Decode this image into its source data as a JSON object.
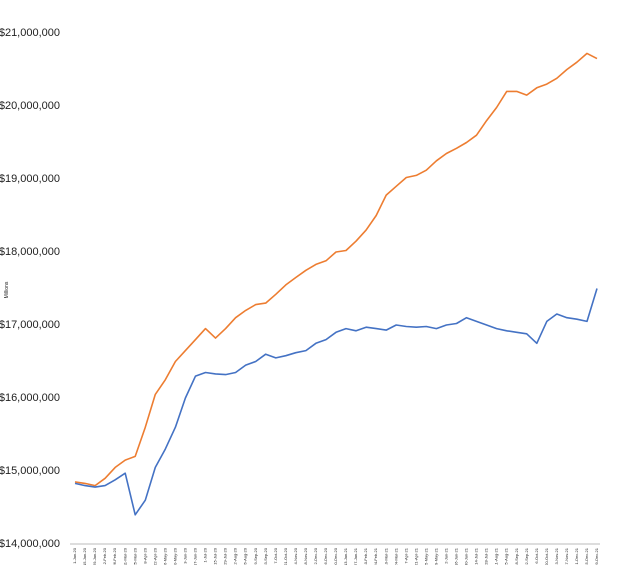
{
  "chart_data": {
    "type": "line",
    "y_label": "Millions",
    "categories": [
      "1-Jan-20",
      "15-Jan-20",
      "29-Jan-20",
      "12-Feb-20",
      "26-Feb-20",
      "11-Mar-20",
      "25-Mar-20",
      "8-Apr-20",
      "22-Apr-20",
      "6-May-20",
      "20-May-20",
      "3-Jun-20",
      "17-Jun-20",
      "1-Jul-20",
      "15-Jul-20",
      "29-Jul-20",
      "12-Aug-20",
      "26-Aug-20",
      "9-Sep-20",
      "23-Sep-20",
      "7-Oct-20",
      "21-Oct-20",
      "4-Nov-20",
      "18-Nov-20",
      "2-Dec-20",
      "16-Dec-20",
      "30-Dec-20",
      "13-Jan-21",
      "27-Jan-21",
      "10-Feb-21",
      "24-Feb-21",
      "10-Mar-21",
      "24-Mar-21",
      "7-Apr-21",
      "21-Apr-21",
      "5-May-21",
      "19-May-21",
      "2-Jun-21",
      "16-Jun-21",
      "30-Jun-21",
      "14-Jul-21",
      "28-Jul-21",
      "11-Aug-21",
      "25-Aug-21",
      "8-Sep-21",
      "22-Sep-21",
      "6-Oct-21",
      "20-Oct-21",
      "3-Nov-21",
      "17-Nov-21",
      "1-Dec-21",
      "15-Dec-21",
      "29-Dec-21"
    ],
    "series": [
      {
        "color": "#ED7D31",
        "values": [
          14850000,
          14830000,
          14800000,
          14900000,
          15050000,
          15150000,
          15200000,
          15600000,
          16050000,
          16250000,
          16500000,
          16650000,
          16800000,
          16950000,
          16820000,
          16950000,
          17100000,
          17200000,
          17280000,
          17300000,
          17420000,
          17550000,
          17650000,
          17750000,
          17830000,
          17880000,
          18000000,
          18020000,
          18150000,
          18300000,
          18500000,
          18780000,
          18900000,
          19020000,
          19050000,
          19120000,
          19250000,
          19350000,
          19420000,
          19500000,
          19600000,
          19800000,
          19980000,
          20200000,
          20200000,
          20150000,
          20250000,
          20300000,
          20380000,
          20500000,
          20600000,
          20720000,
          20650000
        ]
      },
      {
        "color": "#4472C4",
        "values": [
          14830000,
          14800000,
          14780000,
          14800000,
          14880000,
          14970000,
          14400000,
          14600000,
          15050000,
          15300000,
          15600000,
          16000000,
          16300000,
          16350000,
          16330000,
          16320000,
          16350000,
          16450000,
          16500000,
          16600000,
          16550000,
          16580000,
          16620000,
          16650000,
          16750000,
          16800000,
          16900000,
          16950000,
          16920000,
          16970000,
          16950000,
          16930000,
          17000000,
          16980000,
          16970000,
          16980000,
          16950000,
          17000000,
          17020000,
          17100000,
          17050000,
          17000000,
          16950000,
          16920000,
          16900000,
          16880000,
          16750000,
          17050000,
          17150000,
          17100000,
          17080000,
          17050000,
          17500000
        ]
      }
    ],
    "ylim": [
      14000000,
      21000000
    ],
    "yticks": [
      {
        "value": 14000000,
        "label": "$14,000,000"
      },
      {
        "value": 15000000,
        "label": "$15,000,000"
      },
      {
        "value": 16000000,
        "label": "$16,000,000"
      },
      {
        "value": 17000000,
        "label": "$17,000,000"
      },
      {
        "value": 18000000,
        "label": "$18,000,000"
      },
      {
        "value": 19000000,
        "label": "$19,000,000"
      },
      {
        "value": 20000000,
        "label": "$20,000,000"
      },
      {
        "value": 21000000,
        "label": "$21,000,000"
      }
    ],
    "grid": false
  }
}
